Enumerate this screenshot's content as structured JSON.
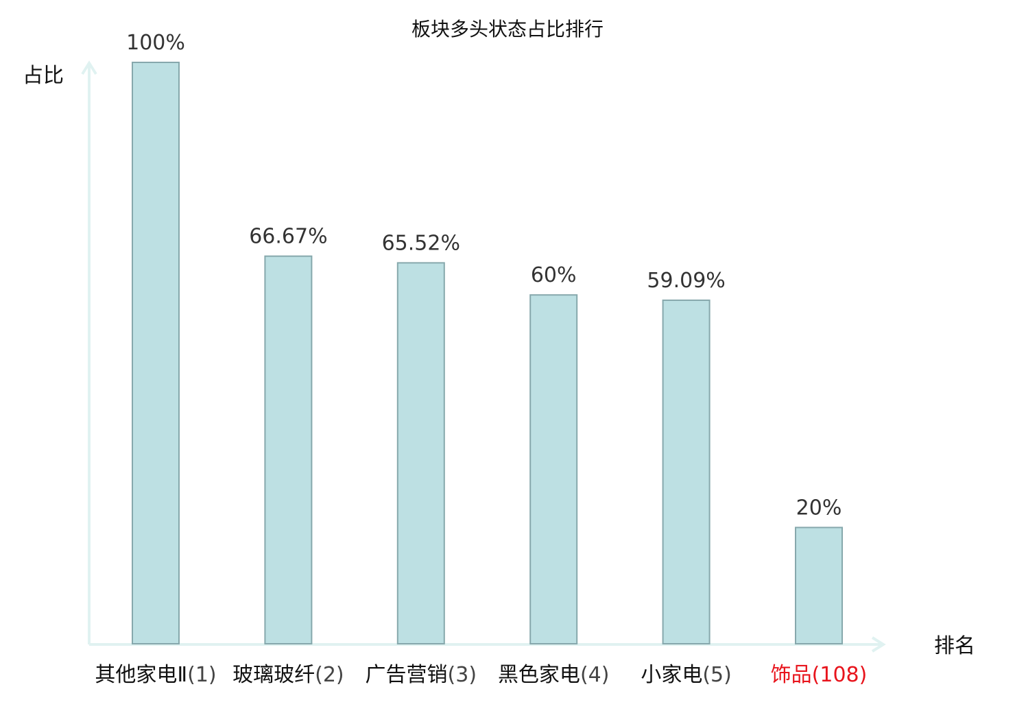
{
  "chart_data": {
    "type": "bar",
    "title": "板块多头状态占比排行",
    "ylabel": "占比",
    "xlabel": "排名",
    "ylim": [
      0,
      100
    ],
    "grid": false,
    "categories": [
      {
        "name": "其他家电Ⅱ",
        "rank": "(1)"
      },
      {
        "name": "玻璃玻纤",
        "rank": "(2)"
      },
      {
        "name": "广告营销",
        "rank": "(3)"
      },
      {
        "name": "黑色家电",
        "rank": "(4)"
      },
      {
        "name": "小家电",
        "rank": "(5)"
      },
      {
        "name": "饰品",
        "rank": "(108)"
      }
    ],
    "values": [
      100,
      66.67,
      65.52,
      60,
      59.09,
      20
    ],
    "value_labels": [
      "100%",
      "66.67%",
      "65.52%",
      "60%",
      "59.09%",
      "20%"
    ],
    "highlight_index": 5,
    "colors": {
      "bar_fill": "#bde0e3",
      "bar_stroke": "#86a8ac",
      "axis": "#e0f2f1",
      "highlight_text": "#e8141c",
      "name_text": "#111111",
      "rank_text": "#444444"
    }
  }
}
